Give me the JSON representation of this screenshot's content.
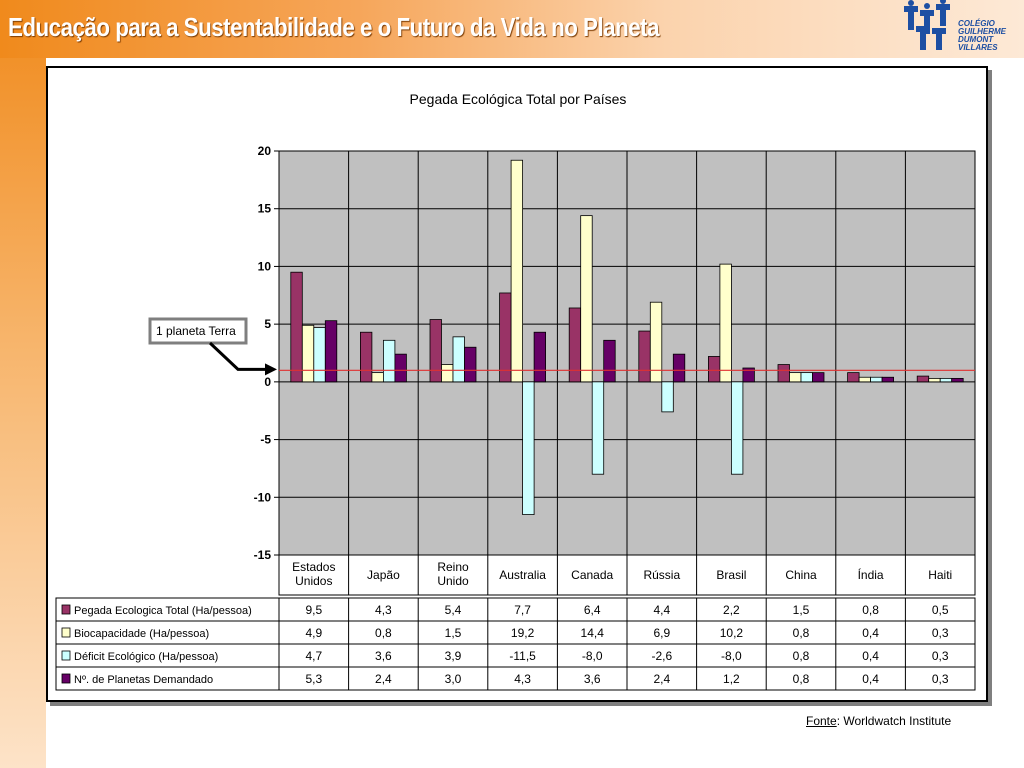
{
  "slide": {
    "title": "Educação para a Sustentabilidade e o Futuro da Vida no Planeta",
    "logo_text": "COLÉGIO\nGUILHERME\nDUMONT\nVILLARES"
  },
  "source": {
    "label": "Fonte",
    "separator": ":",
    "text": " Worldwatch Institute"
  },
  "chart_data": {
    "type": "bar",
    "title": "Pegada Ecológica Total por Países",
    "xlabel": "",
    "ylabel": "",
    "ylim": [
      -15,
      20
    ],
    "yticks": [
      20,
      15,
      10,
      5,
      0,
      -5,
      -10,
      -15
    ],
    "grid": true,
    "categories": [
      "Estados Unidos",
      "Japão",
      "Reino Unido",
      "Australia",
      "Canada",
      "Rússia",
      "Brasil",
      "China",
      "Índia",
      "Haiti"
    ],
    "series": [
      {
        "name": "Pegada Ecologica Total (Ha/pessoa)",
        "color": "#993366",
        "values": [
          9.5,
          4.3,
          5.4,
          7.7,
          6.4,
          4.4,
          2.2,
          1.5,
          0.8,
          0.5
        ],
        "labels": [
          "9,5",
          "4,3",
          "5,4",
          "7,7",
          "6,4",
          "4,4",
          "2,2",
          "1,5",
          "0,8",
          "0,5"
        ]
      },
      {
        "name": "Biocapacidade (Ha/pessoa)",
        "color": "#ffffcc",
        "values": [
          4.9,
          0.8,
          1.5,
          19.2,
          14.4,
          6.9,
          10.2,
          0.8,
          0.4,
          0.3
        ],
        "labels": [
          "4,9",
          "0,8",
          "1,5",
          "19,2",
          "14,4",
          "6,9",
          "10,2",
          "0,8",
          "0,4",
          "0,3"
        ]
      },
      {
        "name": "Déficit Ecológico (Ha/pessoa)",
        "color": "#ccffff",
        "values": [
          4.7,
          3.6,
          3.9,
          -11.5,
          -8.0,
          -2.6,
          -8.0,
          0.8,
          0.4,
          0.3
        ],
        "labels": [
          "4,7",
          "3,6",
          "3,9",
          "-11,5",
          "-8,0",
          "-2,6",
          "-8,0",
          "0,8",
          "0,4",
          "0,3"
        ]
      },
      {
        "name": "Nº. de Planetas Demandado",
        "color": "#660066",
        "values": [
          5.3,
          2.4,
          3.0,
          4.3,
          3.6,
          2.4,
          1.2,
          0.8,
          0.4,
          0.3
        ],
        "labels": [
          "5,3",
          "2,4",
          "3,0",
          "4,3",
          "3,6",
          "2,4",
          "1,2",
          "0,8",
          "0,4",
          "0,3"
        ]
      }
    ],
    "reference_line": {
      "value": 1,
      "color": "#e03030"
    },
    "annotation": {
      "text": "1 planeta Terra",
      "points_to": 1
    },
    "colors": {
      "plot_background": "#c0c0c0",
      "gridline": "#000000"
    }
  }
}
